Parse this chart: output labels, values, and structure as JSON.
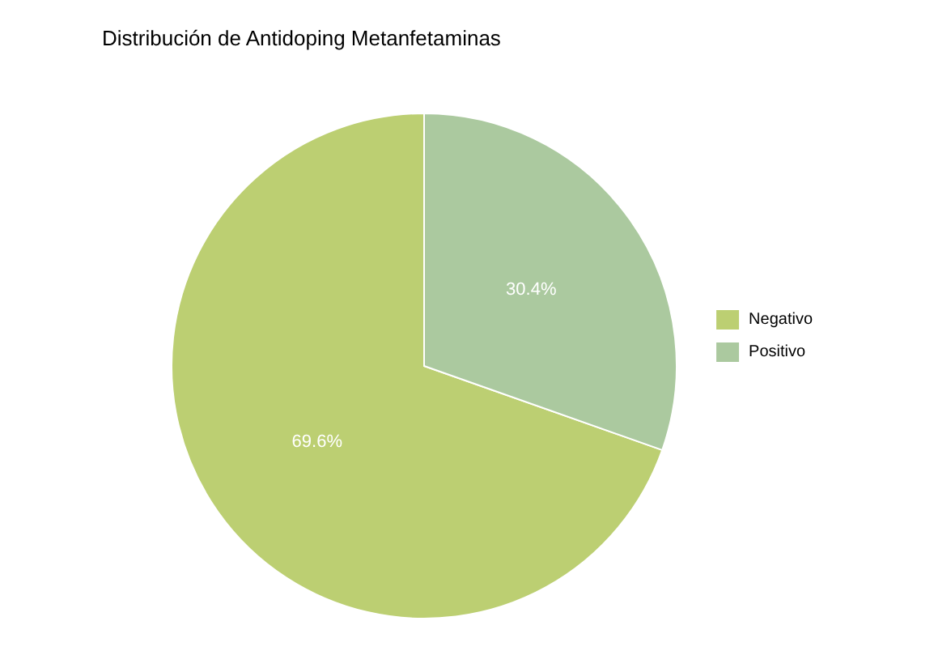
{
  "chart_data": {
    "type": "pie",
    "title": "Distribución de Antidoping Metanfetaminas",
    "categories": [
      "Negativo",
      "Positivo"
    ],
    "values": [
      69.6,
      30.4
    ],
    "colors": [
      "#bccf72",
      "#abc99f"
    ],
    "value_labels": [
      "69.6%",
      "30.4%"
    ],
    "legend": "right"
  }
}
